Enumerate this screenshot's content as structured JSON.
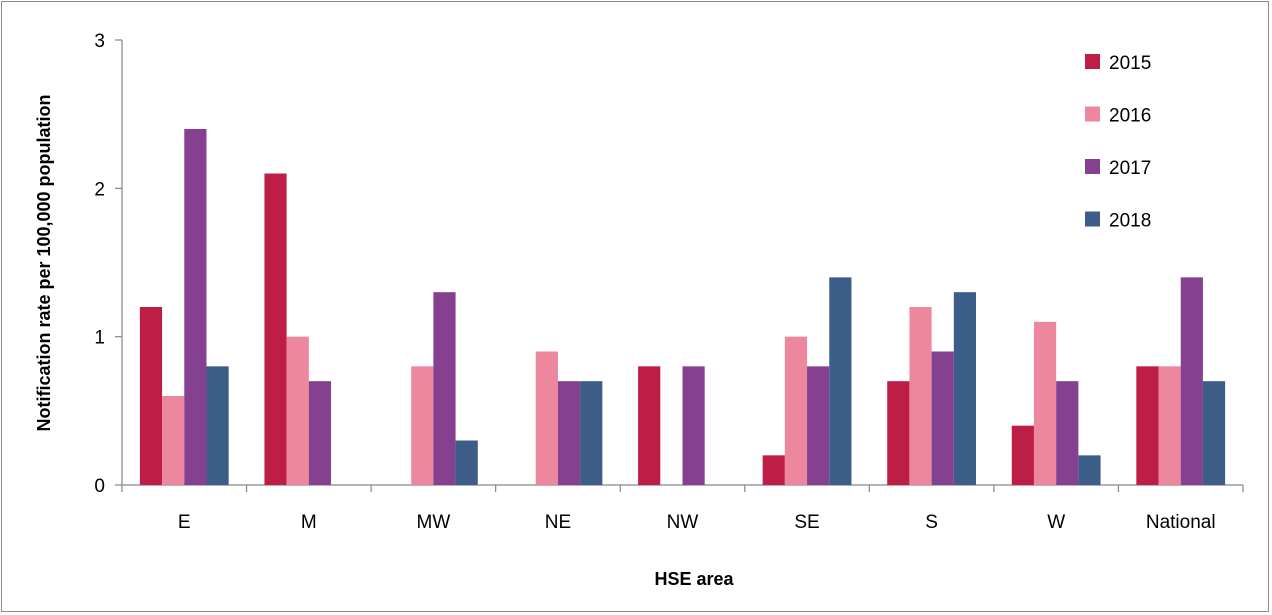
{
  "chart_data": {
    "type": "bar",
    "categories": [
      "E",
      "M",
      "MW",
      "NE",
      "NW",
      "SE",
      "S",
      "W",
      "National"
    ],
    "series": [
      {
        "name": "2015",
        "color": "#be1e46",
        "values": [
          1.2,
          2.1,
          0,
          0,
          0.8,
          0.2,
          0.7,
          0.4,
          0.8
        ]
      },
      {
        "name": "2016",
        "color": "#ec879e",
        "values": [
          0.6,
          1.0,
          0.8,
          0.9,
          0,
          1.0,
          1.2,
          1.1,
          0.8
        ]
      },
      {
        "name": "2017",
        "color": "#85408f",
        "values": [
          2.4,
          0.7,
          1.3,
          0.7,
          0.8,
          0.8,
          0.9,
          0.7,
          1.4
        ]
      },
      {
        "name": "2018",
        "color": "#3c5d87",
        "values": [
          0.8,
          0,
          0.3,
          0.7,
          0,
          1.4,
          1.3,
          0.2,
          0.7
        ]
      }
    ],
    "xlabel": "HSE area",
    "ylabel": "Notification  rate per 100,000 population",
    "ylim": [
      0,
      3
    ],
    "yticks": [
      "0",
      "1",
      "2",
      "3"
    ],
    "grid": false,
    "legend_position": "top-right"
  }
}
